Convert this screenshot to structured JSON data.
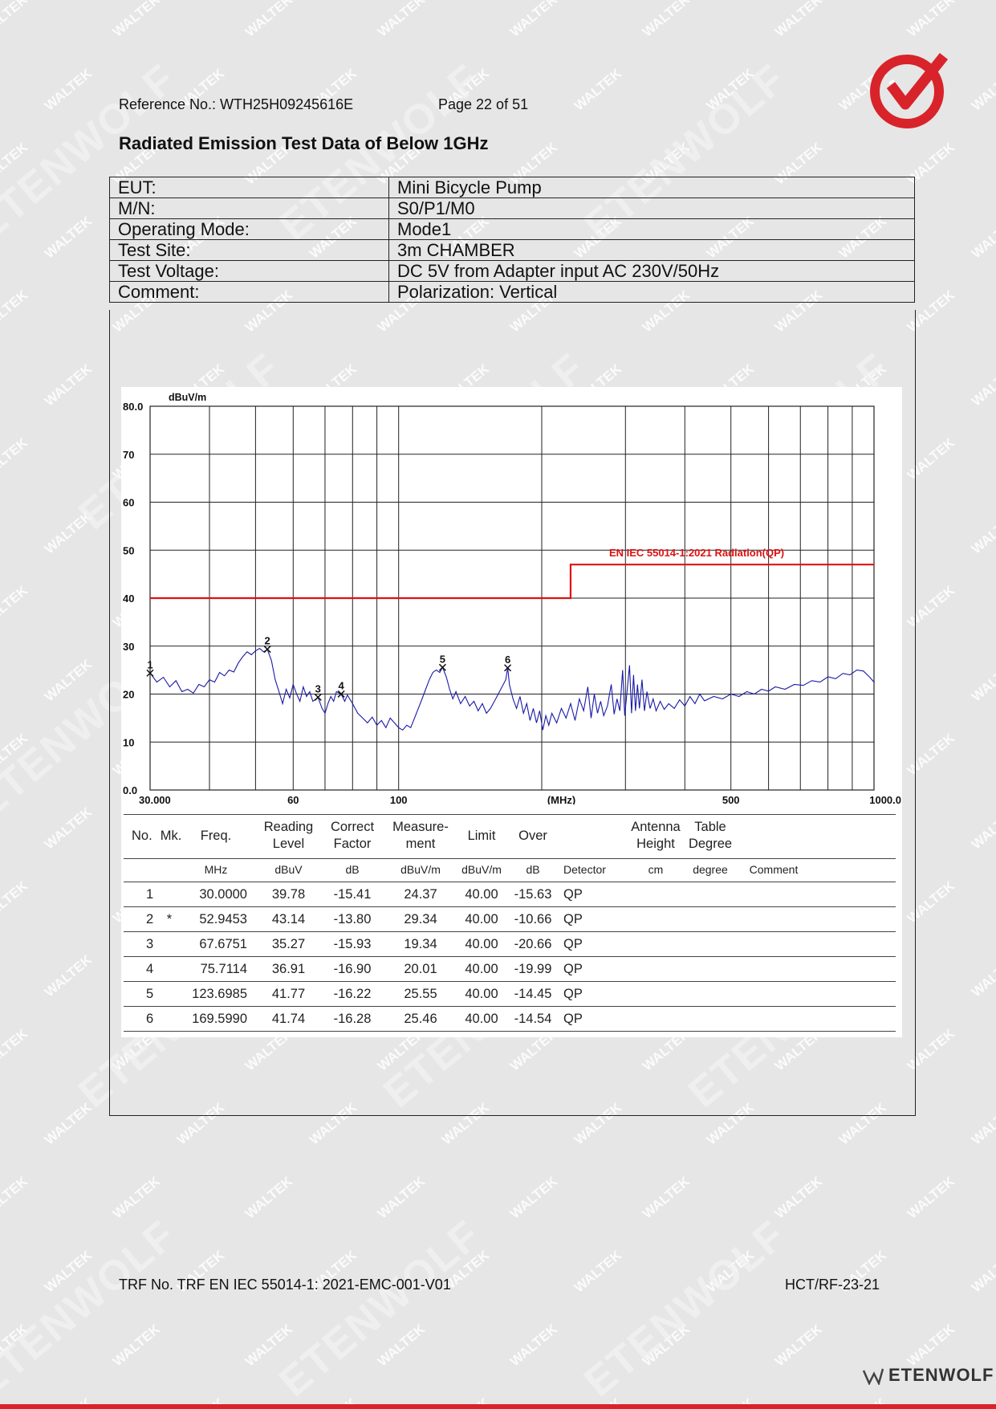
{
  "header": {
    "reference": "Reference No.: WTH25H09245616E",
    "page": "Page 22 of 51"
  },
  "title": "Radiated Emission Test Data of Below 1GHz",
  "info_rows": [
    {
      "label": "EUT:",
      "value": "Mini Bicycle Pump"
    },
    {
      "label": "M/N:",
      "value": "S0/P1/M0"
    },
    {
      "label": "Operating Mode:",
      "value": "Mode1"
    },
    {
      "label": "Test Site:",
      "value": "3m CHAMBER"
    },
    {
      "label": "Test Voltage:",
      "value": "DC 5V from Adapter input AC 230V/50Hz"
    },
    {
      "label": "Comment:",
      "value": "Polarization: Vertical"
    }
  ],
  "chart_data": {
    "type": "line",
    "xscale": "log",
    "xlim": [
      30,
      1000
    ],
    "ylim": [
      0,
      80
    ],
    "y_unit": "dBuV/m",
    "x_unit": "(MHz)",
    "y_ticks": [
      "80.0",
      "70",
      "60",
      "50",
      "40",
      "30",
      "20",
      "10",
      "0.0"
    ],
    "y_tick_values": [
      80,
      70,
      60,
      50,
      40,
      30,
      20,
      10,
      0
    ],
    "x_tick_labels": [
      {
        "value": 30,
        "label": "30.000"
      },
      {
        "value": 60,
        "label": "60"
      },
      {
        "value": 100,
        "label": "100"
      },
      {
        "value": 220,
        "label": "(MHz)"
      },
      {
        "value": 500,
        "label": "500"
      },
      {
        "value": 1000,
        "label": "1000.0"
      }
    ],
    "x_gridlines": [
      30,
      40,
      50,
      60,
      70,
      80,
      90,
      100,
      200,
      300,
      400,
      500,
      600,
      700,
      800,
      900,
      1000
    ],
    "limit_line": {
      "name": "EN IEC 55014-1:2021 Radiation(QP)",
      "points": [
        [
          30,
          40
        ],
        [
          230,
          40
        ],
        [
          230,
          47
        ],
        [
          1000,
          47
        ]
      ]
    },
    "series": [
      {
        "color": "#1a1aa8",
        "points": [
          [
            30,
            24.4
          ],
          [
            31,
            22.5
          ],
          [
            32,
            23.5
          ],
          [
            33,
            21.5
          ],
          [
            34,
            22.8
          ],
          [
            35,
            20.5
          ],
          [
            36,
            21
          ],
          [
            37,
            20.2
          ],
          [
            38,
            22
          ],
          [
            39,
            21.5
          ],
          [
            40,
            23
          ],
          [
            41,
            22.5
          ],
          [
            42,
            24.5
          ],
          [
            43,
            23.8
          ],
          [
            44,
            25
          ],
          [
            45,
            24.6
          ],
          [
            46,
            26.5
          ],
          [
            47,
            27.8
          ],
          [
            48,
            28.8
          ],
          [
            49,
            28.2
          ],
          [
            50,
            29
          ],
          [
            51,
            29.5
          ],
          [
            52,
            28.8
          ],
          [
            52.95,
            29.3
          ],
          [
            54,
            27
          ],
          [
            55,
            23
          ],
          [
            56,
            20.5
          ],
          [
            57,
            18
          ],
          [
            58,
            21
          ],
          [
            59,
            19.2
          ],
          [
            60,
            22
          ],
          [
            61,
            20
          ],
          [
            62,
            18.5
          ],
          [
            63,
            21.5
          ],
          [
            64,
            19.5
          ],
          [
            65,
            20.5
          ],
          [
            66,
            18.5
          ],
          [
            67.68,
            19.3
          ],
          [
            69,
            17
          ],
          [
            70,
            16
          ],
          [
            71,
            18
          ],
          [
            72,
            19.5
          ],
          [
            73,
            18.5
          ],
          [
            74,
            20.5
          ],
          [
            75.71,
            20
          ],
          [
            77,
            18.5
          ],
          [
            78,
            19.8
          ],
          [
            80,
            18
          ],
          [
            82,
            16
          ],
          [
            84,
            15
          ],
          [
            86,
            14
          ],
          [
            88,
            15.2
          ],
          [
            90,
            13.5
          ],
          [
            92,
            14.5
          ],
          [
            94,
            13
          ],
          [
            96,
            15
          ],
          [
            98,
            14
          ],
          [
            100,
            13
          ],
          [
            102,
            12.5
          ],
          [
            104,
            13.5
          ],
          [
            106,
            13
          ],
          [
            108,
            15
          ],
          [
            110,
            17
          ],
          [
            112,
            19
          ],
          [
            114,
            21
          ],
          [
            116,
            23
          ],
          [
            118,
            24.5
          ],
          [
            120,
            25
          ],
          [
            122,
            24.5
          ],
          [
            123.7,
            25.6
          ],
          [
            126,
            23.5
          ],
          [
            128,
            21
          ],
          [
            130,
            19
          ],
          [
            132,
            20.5
          ],
          [
            135,
            18
          ],
          [
            138,
            19.5
          ],
          [
            141,
            17.5
          ],
          [
            144,
            18.5
          ],
          [
            147,
            16.5
          ],
          [
            150,
            18
          ],
          [
            153,
            16
          ],
          [
            156,
            17
          ],
          [
            159,
            18.5
          ],
          [
            162,
            20
          ],
          [
            165,
            21.5
          ],
          [
            168,
            23
          ],
          [
            169.6,
            25.5
          ],
          [
            171,
            22
          ],
          [
            174,
            19
          ],
          [
            177,
            17
          ],
          [
            180,
            19.5
          ],
          [
            183,
            16
          ],
          [
            186,
            18
          ],
          [
            189,
            14.5
          ],
          [
            192,
            17
          ],
          [
            195,
            14
          ],
          [
            198,
            16.5
          ],
          [
            201,
            12.5
          ],
          [
            204,
            15.5
          ],
          [
            207,
            13.5
          ],
          [
            210,
            16
          ],
          [
            215,
            14
          ],
          [
            220,
            17
          ],
          [
            225,
            15
          ],
          [
            230,
            18
          ],
          [
            235,
            14.5
          ],
          [
            240,
            19
          ],
          [
            245,
            16.5
          ],
          [
            250,
            21.5
          ],
          [
            254,
            15
          ],
          [
            258,
            20
          ],
          [
            262,
            16
          ],
          [
            266,
            18.5
          ],
          [
            270,
            15.5
          ],
          [
            275,
            17.5
          ],
          [
            280,
            22
          ],
          [
            284,
            15.8
          ],
          [
            288,
            19
          ],
          [
            292,
            16.5
          ],
          [
            296,
            25
          ],
          [
            299,
            15.5
          ],
          [
            302,
            20
          ],
          [
            306,
            26
          ],
          [
            309,
            16
          ],
          [
            312,
            24
          ],
          [
            315,
            16.5
          ],
          [
            318,
            22
          ],
          [
            321,
            17
          ],
          [
            325,
            23
          ],
          [
            329,
            16.5
          ],
          [
            333,
            20.5
          ],
          [
            338,
            17
          ],
          [
            343,
            19
          ],
          [
            348,
            16.5
          ],
          [
            355,
            18.5
          ],
          [
            362,
            16.8
          ],
          [
            370,
            18
          ],
          [
            380,
            17
          ],
          [
            390,
            18.8
          ],
          [
            400,
            17.5
          ],
          [
            410,
            19.5
          ],
          [
            420,
            18
          ],
          [
            430,
            20
          ],
          [
            440,
            18.6
          ],
          [
            460,
            19.5
          ],
          [
            480,
            19
          ],
          [
            500,
            20
          ],
          [
            520,
            19.5
          ],
          [
            540,
            20.5
          ],
          [
            560,
            20
          ],
          [
            580,
            21
          ],
          [
            600,
            20.6
          ],
          [
            620,
            21.5
          ],
          [
            650,
            21
          ],
          [
            680,
            22
          ],
          [
            710,
            21.8
          ],
          [
            740,
            22.8
          ],
          [
            770,
            22.5
          ],
          [
            800,
            23.6
          ],
          [
            830,
            23.2
          ],
          [
            860,
            24.3
          ],
          [
            890,
            24
          ],
          [
            920,
            25
          ],
          [
            950,
            24.8
          ],
          [
            980,
            23.5
          ],
          [
            1000,
            22.5
          ]
        ]
      }
    ],
    "markers": [
      {
        "label": "1",
        "x": 30.0,
        "y": 24.37
      },
      {
        "label": "2",
        "x": 52.9453,
        "y": 29.34
      },
      {
        "label": "3",
        "x": 67.6751,
        "y": 19.34
      },
      {
        "label": "4",
        "x": 75.7114,
        "y": 20.01
      },
      {
        "label": "5",
        "x": 123.6985,
        "y": 25.55
      },
      {
        "label": "6",
        "x": 169.599,
        "y": 25.46
      }
    ]
  },
  "data_table": {
    "headers": [
      [
        "No."
      ],
      [
        "Mk."
      ],
      [
        "Freq."
      ],
      [
        "Reading",
        "Level"
      ],
      [
        "Correct",
        "Factor"
      ],
      [
        "Measure-",
        "ment"
      ],
      [
        "Limit"
      ],
      [
        "Over"
      ],
      [
        ""
      ],
      [
        "Antenna",
        "Height"
      ],
      [
        "Table",
        "Degree"
      ],
      [
        ""
      ]
    ],
    "units": [
      "",
      "",
      "MHz",
      "dBuV",
      "dB",
      "dBuV/m",
      "dBuV/m",
      "dB",
      "Detector",
      "cm",
      "degree",
      "Comment"
    ],
    "rows": [
      [
        "1",
        "",
        "30.0000",
        "39.78",
        "-15.41",
        "24.37",
        "40.00",
        "-15.63",
        "QP",
        "",
        "",
        ""
      ],
      [
        "2",
        "*",
        "52.9453",
        "43.14",
        "-13.80",
        "29.34",
        "40.00",
        "-10.66",
        "QP",
        "",
        "",
        ""
      ],
      [
        "3",
        "",
        "67.6751",
        "35.27",
        "-15.93",
        "19.34",
        "40.00",
        "-20.66",
        "QP",
        "",
        "",
        ""
      ],
      [
        "4",
        "",
        "75.7114",
        "36.91",
        "-16.90",
        "20.01",
        "40.00",
        "-19.99",
        "QP",
        "",
        "",
        ""
      ],
      [
        "5",
        "",
        "123.6985",
        "41.77",
        "-16.22",
        "25.55",
        "40.00",
        "-14.45",
        "QP",
        "",
        "",
        ""
      ],
      [
        "6",
        "",
        "169.5990",
        "41.74",
        "-16.28",
        "25.46",
        "40.00",
        "-14.54",
        "QP",
        "",
        "",
        ""
      ]
    ]
  },
  "footer": {
    "trf": "TRF No. TRF EN IEC 55014-1: 2021-EMC-001-V01",
    "code": "HCT/RF-23-21"
  },
  "brand": {
    "name": "ETENWOLF",
    "watermark_small": "WALTEK",
    "watermark_big": "ETENWOLF",
    "accent": "#d8232a"
  }
}
